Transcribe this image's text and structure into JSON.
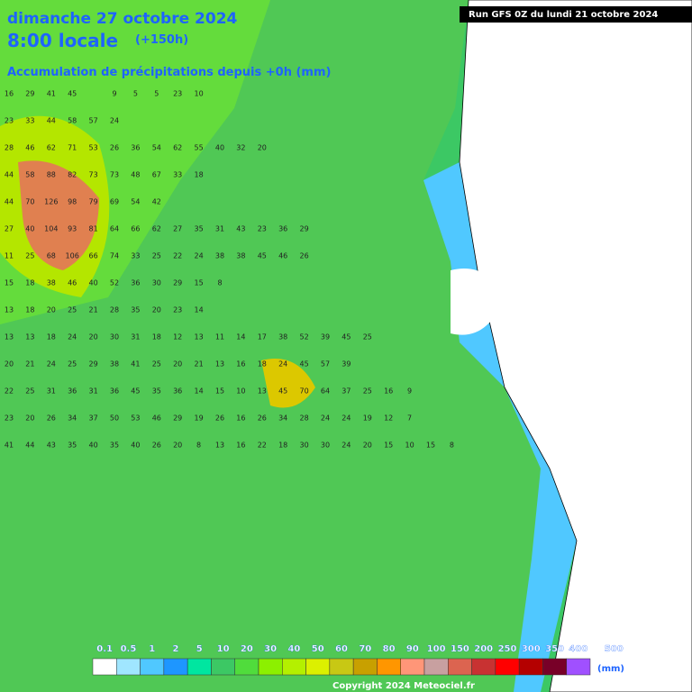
{
  "header": {
    "title": "dimanche 27 octobre 2024",
    "time": "8:00 locale",
    "lead": "(+150h)",
    "subtitle": "Accumulation de précipitations depuis +0h (mm)",
    "run": "Run GFS 0Z du lundi 21 octobre 2024"
  },
  "grid": {
    "rows": [
      [
        16,
        29,
        41,
        45,
        null,
        9,
        5,
        5,
        23,
        10
      ],
      [
        23,
        33,
        44,
        58,
        57,
        24
      ],
      [
        28,
        46,
        62,
        71,
        53,
        26,
        36,
        54,
        62,
        55,
        40,
        32,
        20
      ],
      [
        44,
        58,
        88,
        82,
        73,
        73,
        48,
        67,
        33,
        18
      ],
      [
        44,
        70,
        126,
        98,
        79,
        69,
        54,
        42
      ],
      [
        27,
        40,
        104,
        93,
        81,
        64,
        66,
        62,
        27,
        35,
        31,
        43,
        23,
        36,
        29
      ],
      [
        11,
        25,
        68,
        106,
        66,
        74,
        33,
        25,
        22,
        24,
        38,
        38,
        45,
        46,
        26
      ],
      [
        15,
        18,
        38,
        46,
        40,
        52,
        36,
        30,
        29,
        15,
        8
      ],
      [
        13,
        18,
        20,
        25,
        21,
        28,
        35,
        20,
        23,
        14
      ],
      [
        13,
        13,
        18,
        24,
        20,
        30,
        31,
        18,
        12,
        13,
        11,
        14,
        17,
        38,
        52,
        39,
        45,
        25
      ],
      [
        20,
        21,
        24,
        25,
        29,
        38,
        41,
        25,
        20,
        21,
        13,
        16,
        18,
        24,
        45,
        57,
        39
      ],
      [
        22,
        25,
        31,
        36,
        31,
        36,
        45,
        35,
        36,
        14,
        15,
        10,
        13,
        45,
        70,
        64,
        37,
        25,
        16,
        9
      ],
      [
        23,
        20,
        26,
        34,
        37,
        50,
        53,
        46,
        29,
        19,
        26,
        16,
        26,
        34,
        28,
        24,
        24,
        19,
        12,
        7
      ],
      [
        41,
        44,
        43,
        35,
        40,
        35,
        40,
        26,
        20,
        8,
        13,
        16,
        22,
        18,
        30,
        30,
        24,
        20,
        15,
        10,
        15,
        8
      ]
    ]
  },
  "legend": {
    "thresholds": [
      0.1,
      0.5,
      1,
      2,
      5,
      10,
      20,
      30,
      40,
      50,
      60,
      70,
      80,
      90,
      100,
      150,
      200,
      250,
      300,
      350,
      400,
      500
    ],
    "colors": [
      "#ffffff",
      "#a0e6ff",
      "#50c8ff",
      "#1e96ff",
      "#00e6a0",
      "#3cc864",
      "#50dc3c",
      "#8cf000",
      "#b4f000",
      "#dcf000",
      "#c8c814",
      "#c8a000",
      "#ff9600",
      "#ff9678",
      "#c8a0a0",
      "#dc6450",
      "#c83232",
      "#ff0000",
      "#b40000",
      "#780028",
      "#a050ff"
    ],
    "unit": "(mm)"
  },
  "footer": {
    "copyright": "Copyright 2024 Meteociel.fr"
  }
}
